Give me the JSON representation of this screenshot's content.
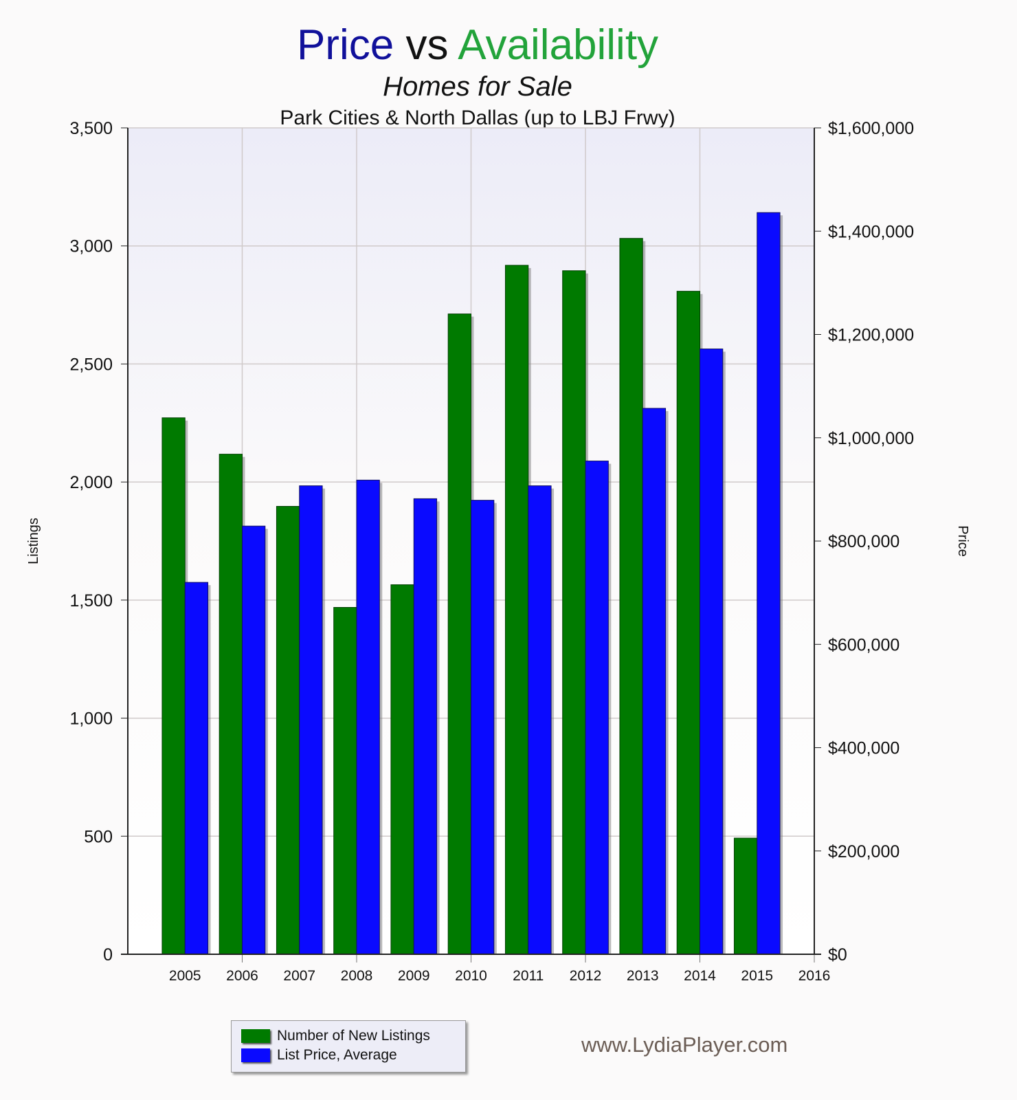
{
  "title": {
    "part1": "Price",
    "part2": "vs",
    "part3": "Availability"
  },
  "subtitle": "Homes for Sale",
  "subtitle2": "Park Cities & North Dallas (up to LBJ Frwy)",
  "credit": "www.LydiaPlayer.com",
  "colors": {
    "listings": "#007a00",
    "price": "#0a0aff",
    "title_price": "#10109a",
    "title_avail": "#22a33a"
  },
  "chart_data": {
    "type": "bar",
    "categories": [
      "2005",
      "2006",
      "2007",
      "2008",
      "2009",
      "2010",
      "2011",
      "2012",
      "2013",
      "2014",
      "2015"
    ],
    "x_tick_labels": [
      "2005",
      "2006",
      "2007",
      "2008",
      "2009",
      "2010",
      "2011",
      "2012",
      "2013",
      "2014",
      "2015",
      "2016"
    ],
    "series": [
      {
        "name": "Number of New Listings",
        "axis": "left",
        "color": "#007a00",
        "values": [
          2272,
          2118,
          1897,
          1469,
          1565,
          2712,
          2918,
          2895,
          3032,
          2808,
          492
        ]
      },
      {
        "name": "List Price, Average",
        "axis": "right",
        "color": "#0a0aff",
        "values": [
          720000,
          829000,
          907000,
          918000,
          882000,
          879000,
          907000,
          955000,
          1057000,
          1172000,
          1436000
        ]
      }
    ],
    "ylabel": "Listings",
    "y2label": "Price",
    "ylim": [
      0,
      3500
    ],
    "y2lim": [
      0,
      1600000
    ],
    "y_ticks": [
      "0",
      "500",
      "1,000",
      "1,500",
      "2,000",
      "2,500",
      "3,000",
      "3,500"
    ],
    "y2_ticks": [
      "$0",
      "$200,000",
      "$400,000",
      "$600,000",
      "$800,000",
      "$1,000,000",
      "$1,200,000",
      "$1,400,000",
      "$1,600,000"
    ],
    "grid": true,
    "legend": "bottom-left"
  }
}
